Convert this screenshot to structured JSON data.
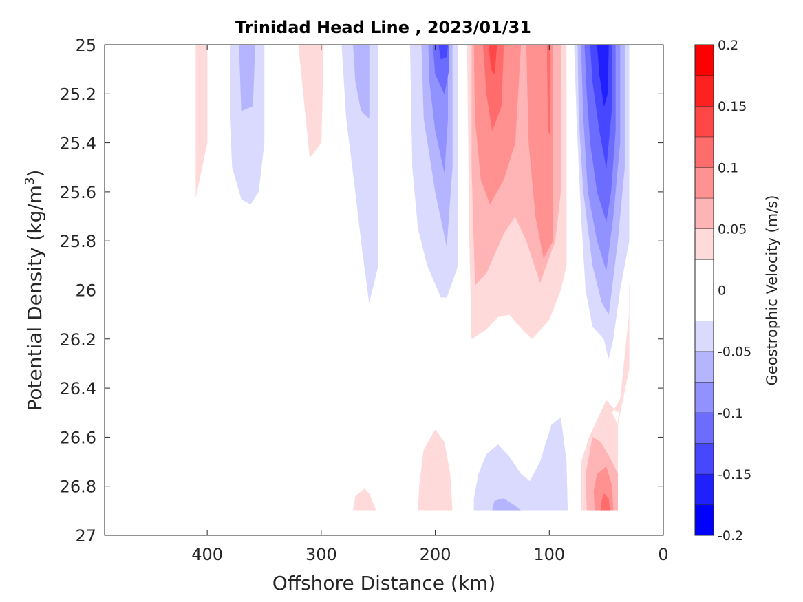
{
  "chart_data": {
    "type": "contour",
    "title": "Trinidad Head Line , 2023/01/31",
    "xlabel": "Offshore Distance (km)",
    "ylabel_main": "Potential Density (kg/m",
    "ylabel_sup": "3",
    "ylabel_close": ")",
    "xlim": [
      490,
      0
    ],
    "ylim": [
      25,
      27
    ],
    "x_reversed": true,
    "y_reversed": true,
    "x_ticks": [
      400,
      300,
      200,
      100,
      0
    ],
    "x_tick_labels": [
      "400",
      "300",
      "200",
      "100",
      "0"
    ],
    "y_ticks": [
      25,
      25.2,
      25.4,
      25.6,
      25.8,
      26,
      26.2,
      26.4,
      26.6,
      26.8,
      27
    ],
    "y_tick_labels": [
      "25",
      "25.2",
      "25.4",
      "25.6",
      "25.8",
      "26",
      "26.2",
      "26.4",
      "26.6",
      "26.8",
      "27"
    ],
    "grid": false,
    "colorbar": {
      "label": "Geostrophic Velocity (m/s)",
      "range": [
        -0.2,
        0.2
      ],
      "levels": [
        -0.2,
        -0.175,
        -0.15,
        -0.125,
        -0.1,
        -0.075,
        -0.05,
        -0.025,
        0,
        0.025,
        0.05,
        0.075,
        0.1,
        0.125,
        0.15,
        0.175,
        0.2
      ],
      "tick_values": [
        0.2,
        0.15,
        0.1,
        0.05,
        0,
        -0.05,
        -0.1,
        -0.15,
        -0.2
      ],
      "tick_labels": [
        "0.2",
        "0.15",
        "0.1",
        "0.05",
        "0",
        "-0.05",
        "-0.1",
        "-0.15",
        "-0.2"
      ],
      "colors": [
        "#0000ff",
        "#2020ff",
        "#4747ff",
        "#6c6cff",
        "#9191ff",
        "#b5b5ff",
        "#dadaff",
        "#ffffff",
        "#ffffff",
        "#ffdada",
        "#ffb5b5",
        "#ff9191",
        "#ff6c6c",
        "#ff4747",
        "#ff2020",
        "#ff0000"
      ]
    },
    "regions": [
      {
        "level": 0.025,
        "points": [
          [
            410,
            25
          ],
          [
            400,
            25
          ],
          [
            400,
            25.4
          ],
          [
            410,
            25.62
          ]
        ]
      },
      {
        "level": -0.025,
        "points": [
          [
            380,
            25
          ],
          [
            350,
            25
          ],
          [
            350,
            25.4
          ],
          [
            355,
            25.6
          ],
          [
            362,
            25.65
          ],
          [
            370,
            25.63
          ],
          [
            378,
            25.5
          ],
          [
            380,
            25.3
          ]
        ]
      },
      {
        "level": -0.05,
        "points": [
          [
            372,
            25
          ],
          [
            358,
            25
          ],
          [
            360,
            25.25
          ],
          [
            370,
            25.27
          ]
        ]
      },
      {
        "level": 0.025,
        "points": [
          [
            320,
            25
          ],
          [
            298,
            25
          ],
          [
            300,
            25.4
          ],
          [
            310,
            25.46
          ]
        ]
      },
      {
        "level": -0.025,
        "points": [
          [
            282,
            25
          ],
          [
            250,
            25
          ],
          [
            250,
            25.9
          ],
          [
            258,
            26.05
          ],
          [
            265,
            25.8
          ],
          [
            270,
            25.6
          ],
          [
            278,
            25.3
          ]
        ]
      },
      {
        "level": -0.05,
        "points": [
          [
            272,
            25
          ],
          [
            258,
            25
          ],
          [
            258,
            25.3
          ],
          [
            265,
            25.27
          ],
          [
            270,
            25.15
          ]
        ]
      },
      {
        "level": -0.025,
        "points": [
          [
            222,
            25
          ],
          [
            180,
            25
          ],
          [
            180,
            25.9
          ],
          [
            190,
            26.03
          ],
          [
            195,
            26.03
          ],
          [
            207,
            25.9
          ],
          [
            215,
            25.75
          ],
          [
            220,
            25.5
          ]
        ]
      },
      {
        "level": -0.05,
        "points": [
          [
            212,
            25
          ],
          [
            185,
            25
          ],
          [
            185,
            25.5
          ],
          [
            190,
            25.82
          ],
          [
            200,
            25.6
          ],
          [
            210,
            25.3
          ]
        ]
      },
      {
        "level": -0.075,
        "points": [
          [
            206,
            25
          ],
          [
            189,
            25
          ],
          [
            189,
            25.3
          ],
          [
            192,
            25.52
          ],
          [
            200,
            25.35
          ],
          [
            205,
            25.15
          ]
        ]
      },
      {
        "level": -0.1,
        "points": [
          [
            202,
            25
          ],
          [
            188,
            25
          ],
          [
            188,
            25.1
          ],
          [
            192,
            25.2
          ],
          [
            200,
            25.12
          ]
        ]
      },
      {
        "level": -0.125,
        "points": [
          [
            197,
            25
          ],
          [
            189,
            25
          ],
          [
            190,
            25.05
          ],
          [
            195,
            25.06
          ]
        ]
      },
      {
        "level": 0.025,
        "points": [
          [
            172,
            25
          ],
          [
            85,
            25
          ],
          [
            85,
            25.9
          ],
          [
            90,
            26.0
          ],
          [
            100,
            26.12
          ],
          [
            115,
            26.2
          ],
          [
            122,
            26.17
          ],
          [
            135,
            26.1
          ],
          [
            145,
            26.11
          ],
          [
            155,
            26.16
          ],
          [
            168,
            26.2
          ],
          [
            170,
            25.8
          ]
        ]
      },
      {
        "level": 0.05,
        "points": [
          [
            168,
            25
          ],
          [
            90,
            25
          ],
          [
            90,
            25.6
          ],
          [
            95,
            25.8
          ],
          [
            108,
            25.97
          ],
          [
            120,
            25.8
          ],
          [
            130,
            25.7
          ],
          [
            140,
            25.77
          ],
          [
            155,
            25.93
          ],
          [
            165,
            25.98
          ],
          [
            168,
            25.5
          ]
        ]
      },
      {
        "level": 0.075,
        "points": [
          [
            166,
            25
          ],
          [
            125,
            25
          ],
          [
            130,
            25.4
          ],
          [
            140,
            25.55
          ],
          [
            152,
            25.65
          ],
          [
            160,
            25.55
          ],
          [
            165,
            25.3
          ]
        ]
      },
      {
        "level": 0.075,
        "points": [
          [
            120,
            25
          ],
          [
            97,
            25
          ],
          [
            97,
            25.8
          ],
          [
            105,
            25.87
          ],
          [
            112,
            25.7
          ],
          [
            118,
            25.4
          ]
        ]
      },
      {
        "level": 0.1,
        "points": [
          [
            158,
            25
          ],
          [
            140,
            25
          ],
          [
            142,
            25.25
          ],
          [
            150,
            25.35
          ],
          [
            155,
            25.2
          ]
        ]
      },
      {
        "level": 0.1,
        "points": [
          [
            102,
            25
          ],
          [
            99,
            25
          ],
          [
            99,
            25.37
          ],
          [
            101,
            25.35
          ]
        ]
      },
      {
        "level": 0.125,
        "points": [
          [
            153,
            25
          ],
          [
            146,
            25
          ],
          [
            148,
            25.12
          ],
          [
            151,
            25.1
          ]
        ]
      },
      {
        "level": -0.025,
        "points": [
          [
            78,
            25
          ],
          [
            30,
            25
          ],
          [
            30,
            25.8
          ],
          [
            38,
            26.0
          ],
          [
            44,
            26.2
          ],
          [
            48,
            26.28
          ],
          [
            52,
            26.2
          ],
          [
            62,
            26.15
          ],
          [
            68,
            26.0
          ],
          [
            72,
            25.7
          ],
          [
            76,
            25.3
          ]
        ]
      },
      {
        "level": -0.05,
        "points": [
          [
            75,
            25
          ],
          [
            34,
            25
          ],
          [
            34,
            25.5
          ],
          [
            40,
            25.8
          ],
          [
            48,
            26.1
          ],
          [
            54,
            26.05
          ],
          [
            62,
            25.9
          ],
          [
            70,
            25.6
          ],
          [
            74,
            25.3
          ]
        ]
      },
      {
        "level": -0.075,
        "points": [
          [
            72,
            25
          ],
          [
            38,
            25
          ],
          [
            38,
            25.4
          ],
          [
            44,
            25.7
          ],
          [
            50,
            25.92
          ],
          [
            58,
            25.8
          ],
          [
            66,
            25.6
          ],
          [
            70,
            25.3
          ]
        ]
      },
      {
        "level": -0.1,
        "points": [
          [
            69,
            25
          ],
          [
            42,
            25
          ],
          [
            42,
            25.35
          ],
          [
            46,
            25.6
          ],
          [
            50,
            25.72
          ],
          [
            58,
            25.6
          ],
          [
            64,
            25.4
          ],
          [
            67,
            25.2
          ]
        ]
      },
      {
        "level": -0.125,
        "points": [
          [
            64,
            25
          ],
          [
            45,
            25
          ],
          [
            45,
            25.25
          ],
          [
            50,
            25.5
          ],
          [
            56,
            25.35
          ],
          [
            62,
            25.15
          ]
        ]
      },
      {
        "level": -0.15,
        "points": [
          [
            58,
            25
          ],
          [
            48,
            25
          ],
          [
            49,
            25.2
          ],
          [
            52,
            25.25
          ],
          [
            56,
            25.12
          ]
        ]
      },
      {
        "level": 0.025,
        "points": [
          [
            30,
            25.98
          ],
          [
            30,
            26.3
          ],
          [
            35,
            26.4
          ],
          [
            40,
            26.5
          ],
          [
            50,
            26.45
          ],
          [
            55,
            26.5
          ],
          [
            65,
            26.6
          ],
          [
            72,
            26.7
          ],
          [
            72,
            26.9
          ],
          [
            40,
            26.9
          ],
          [
            40,
            26.55
          ],
          [
            45,
            26.5
          ],
          [
            38,
            26.45
          ],
          [
            32,
            26.3
          ],
          [
            30,
            26.1
          ]
        ]
      },
      {
        "level": 0.025,
        "points": [
          [
            40,
            26.55
          ],
          [
            30,
            26.32
          ],
          [
            30,
            26.1
          ]
        ]
      },
      {
        "level": 0.05,
        "points": [
          [
            62,
            26.6
          ],
          [
            55,
            26.62
          ],
          [
            45,
            26.7
          ],
          [
            40,
            26.75
          ],
          [
            40,
            26.9
          ],
          [
            67,
            26.9
          ],
          [
            68,
            26.75
          ]
        ]
      },
      {
        "level": 0.075,
        "points": [
          [
            58,
            26.75
          ],
          [
            50,
            26.72
          ],
          [
            45,
            26.8
          ],
          [
            44,
            26.9
          ],
          [
            60,
            26.9
          ],
          [
            61,
            26.82
          ]
        ]
      },
      {
        "level": 0.1,
        "points": [
          [
            52,
            26.83
          ],
          [
            48,
            26.85
          ],
          [
            47,
            26.9
          ],
          [
            55,
            26.9
          ],
          [
            54,
            26.86
          ]
        ]
      },
      {
        "level": -0.025,
        "points": [
          [
            166,
            26.9
          ],
          [
            84,
            26.9
          ],
          [
            85,
            26.7
          ],
          [
            90,
            26.52
          ],
          [
            98,
            26.55
          ],
          [
            108,
            26.7
          ],
          [
            117,
            26.78
          ],
          [
            125,
            26.75
          ],
          [
            135,
            26.68
          ],
          [
            145,
            26.63
          ],
          [
            155,
            26.67
          ],
          [
            162,
            26.75
          ],
          [
            166,
            26.85
          ]
        ]
      },
      {
        "level": -0.05,
        "points": [
          [
            150,
            26.9
          ],
          [
            125,
            26.9
          ],
          [
            130,
            26.88
          ],
          [
            140,
            26.85
          ],
          [
            148,
            26.86
          ]
        ]
      },
      {
        "level": 0.025,
        "points": [
          [
            215,
            26.9
          ],
          [
            185,
            26.9
          ],
          [
            187,
            26.75
          ],
          [
            192,
            26.62
          ],
          [
            200,
            26.57
          ],
          [
            210,
            26.65
          ],
          [
            214,
            26.8
          ]
        ]
      },
      {
        "level": 0.025,
        "points": [
          [
            272,
            26.9
          ],
          [
            252,
            26.9
          ],
          [
            258,
            26.83
          ],
          [
            262,
            26.81
          ],
          [
            270,
            26.84
          ]
        ]
      }
    ]
  }
}
